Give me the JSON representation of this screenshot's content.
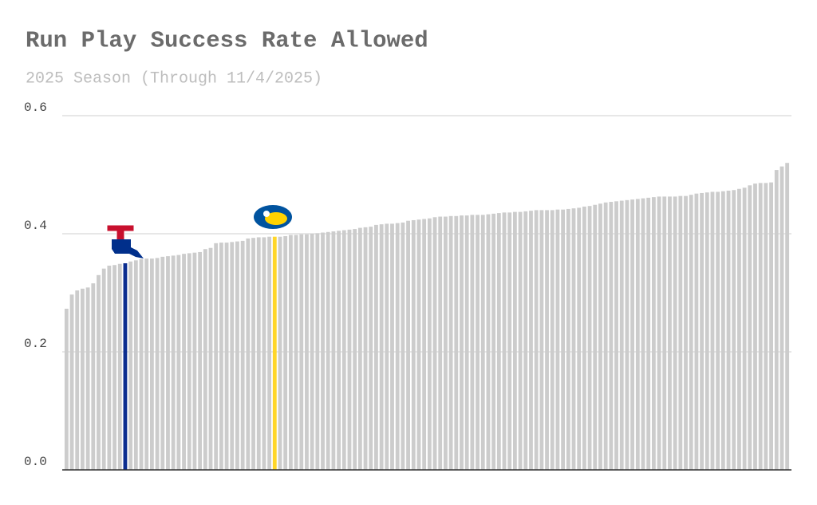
{
  "chart_data": {
    "type": "bar",
    "title": "Run Play Success Rate Allowed",
    "subtitle": "2025 Season (Through 11/4/2025)",
    "values": [
      0.273,
      0.297,
      0.304,
      0.307,
      0.309,
      0.316,
      0.33,
      0.341,
      0.346,
      0.347,
      0.349,
      0.35,
      0.353,
      0.355,
      0.357,
      0.358,
      0.358,
      0.359,
      0.361,
      0.362,
      0.363,
      0.364,
      0.366,
      0.367,
      0.368,
      0.369,
      0.374,
      0.376,
      0.384,
      0.385,
      0.385,
      0.386,
      0.387,
      0.388,
      0.392,
      0.393,
      0.394,
      0.394,
      0.395,
      0.395,
      0.395,
      0.396,
      0.398,
      0.398,
      0.399,
      0.399,
      0.4,
      0.401,
      0.402,
      0.403,
      0.404,
      0.405,
      0.406,
      0.407,
      0.408,
      0.41,
      0.411,
      0.412,
      0.415,
      0.416,
      0.417,
      0.417,
      0.418,
      0.419,
      0.422,
      0.423,
      0.424,
      0.425,
      0.426,
      0.428,
      0.429,
      0.429,
      0.43,
      0.43,
      0.431,
      0.431,
      0.432,
      0.432,
      0.432,
      0.433,
      0.434,
      0.435,
      0.436,
      0.436,
      0.437,
      0.437,
      0.438,
      0.439,
      0.44,
      0.44,
      0.44,
      0.44,
      0.441,
      0.441,
      0.442,
      0.443,
      0.444,
      0.446,
      0.447,
      0.449,
      0.451,
      0.453,
      0.454,
      0.455,
      0.456,
      0.457,
      0.458,
      0.459,
      0.46,
      0.461,
      0.462,
      0.463,
      0.463,
      0.463,
      0.463,
      0.464,
      0.464,
      0.466,
      0.468,
      0.469,
      0.47,
      0.471,
      0.471,
      0.472,
      0.473,
      0.474,
      0.476,
      0.478,
      0.482,
      0.485,
      0.486,
      0.486,
      0.487,
      0.508,
      0.514,
      0.52
    ],
    "color": "#cccccc",
    "highlights": {
      "11": "#0b2d8f",
      "39": "#ffd629"
    },
    "ylim": [
      0,
      0.6
    ],
    "yticks": [
      {
        "value": 0,
        "label": "0.0"
      },
      0.2,
      0.4,
      0.6
    ],
    "grid": true
  }
}
